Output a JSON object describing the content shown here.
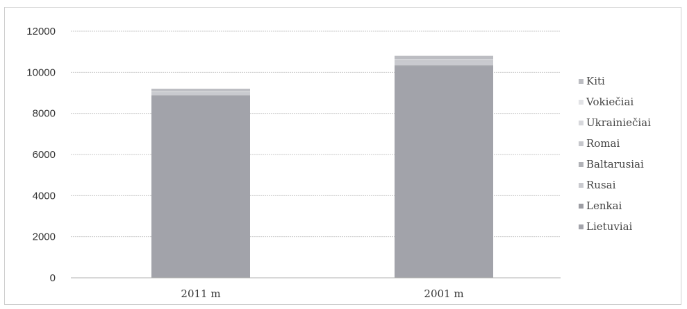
{
  "chart_data": {
    "type": "bar",
    "stacked": true,
    "categories": [
      "2011 m",
      "2001 m"
    ],
    "series": [
      {
        "name": "Lietuviai",
        "values": [
          8850,
          10300
        ],
        "color": "#a2a3aa"
      },
      {
        "name": "Lenkai",
        "values": [
          30,
          40
        ],
        "color": "#9c9da3"
      },
      {
        "name": "Rusai",
        "values": [
          150,
          200
        ],
        "color": "#c9cacf"
      },
      {
        "name": "Baltarusiai",
        "values": [
          20,
          30
        ],
        "color": "#b1b2b7"
      },
      {
        "name": "Romai",
        "values": [
          10,
          10
        ],
        "color": "#c6c7cc"
      },
      {
        "name": "Ukrainiečiai",
        "values": [
          20,
          30
        ],
        "color": "#d7d8dc"
      },
      {
        "name": "Vokiečiai",
        "values": [
          10,
          20
        ],
        "color": "#e2e3e6"
      },
      {
        "name": "Kiti",
        "values": [
          110,
          170
        ],
        "color": "#bcbdc2"
      }
    ],
    "ylim": [
      0,
      12000
    ],
    "yticks": [
      0,
      2000,
      4000,
      6000,
      8000,
      10000,
      12000
    ],
    "grid": true,
    "legend_position": "right",
    "legend_order": [
      "Kiti",
      "Vokiečiai",
      "Ukrainiečiai",
      "Romai",
      "Baltarusiai",
      "Rusai",
      "Lenkai",
      "Lietuviai"
    ]
  }
}
